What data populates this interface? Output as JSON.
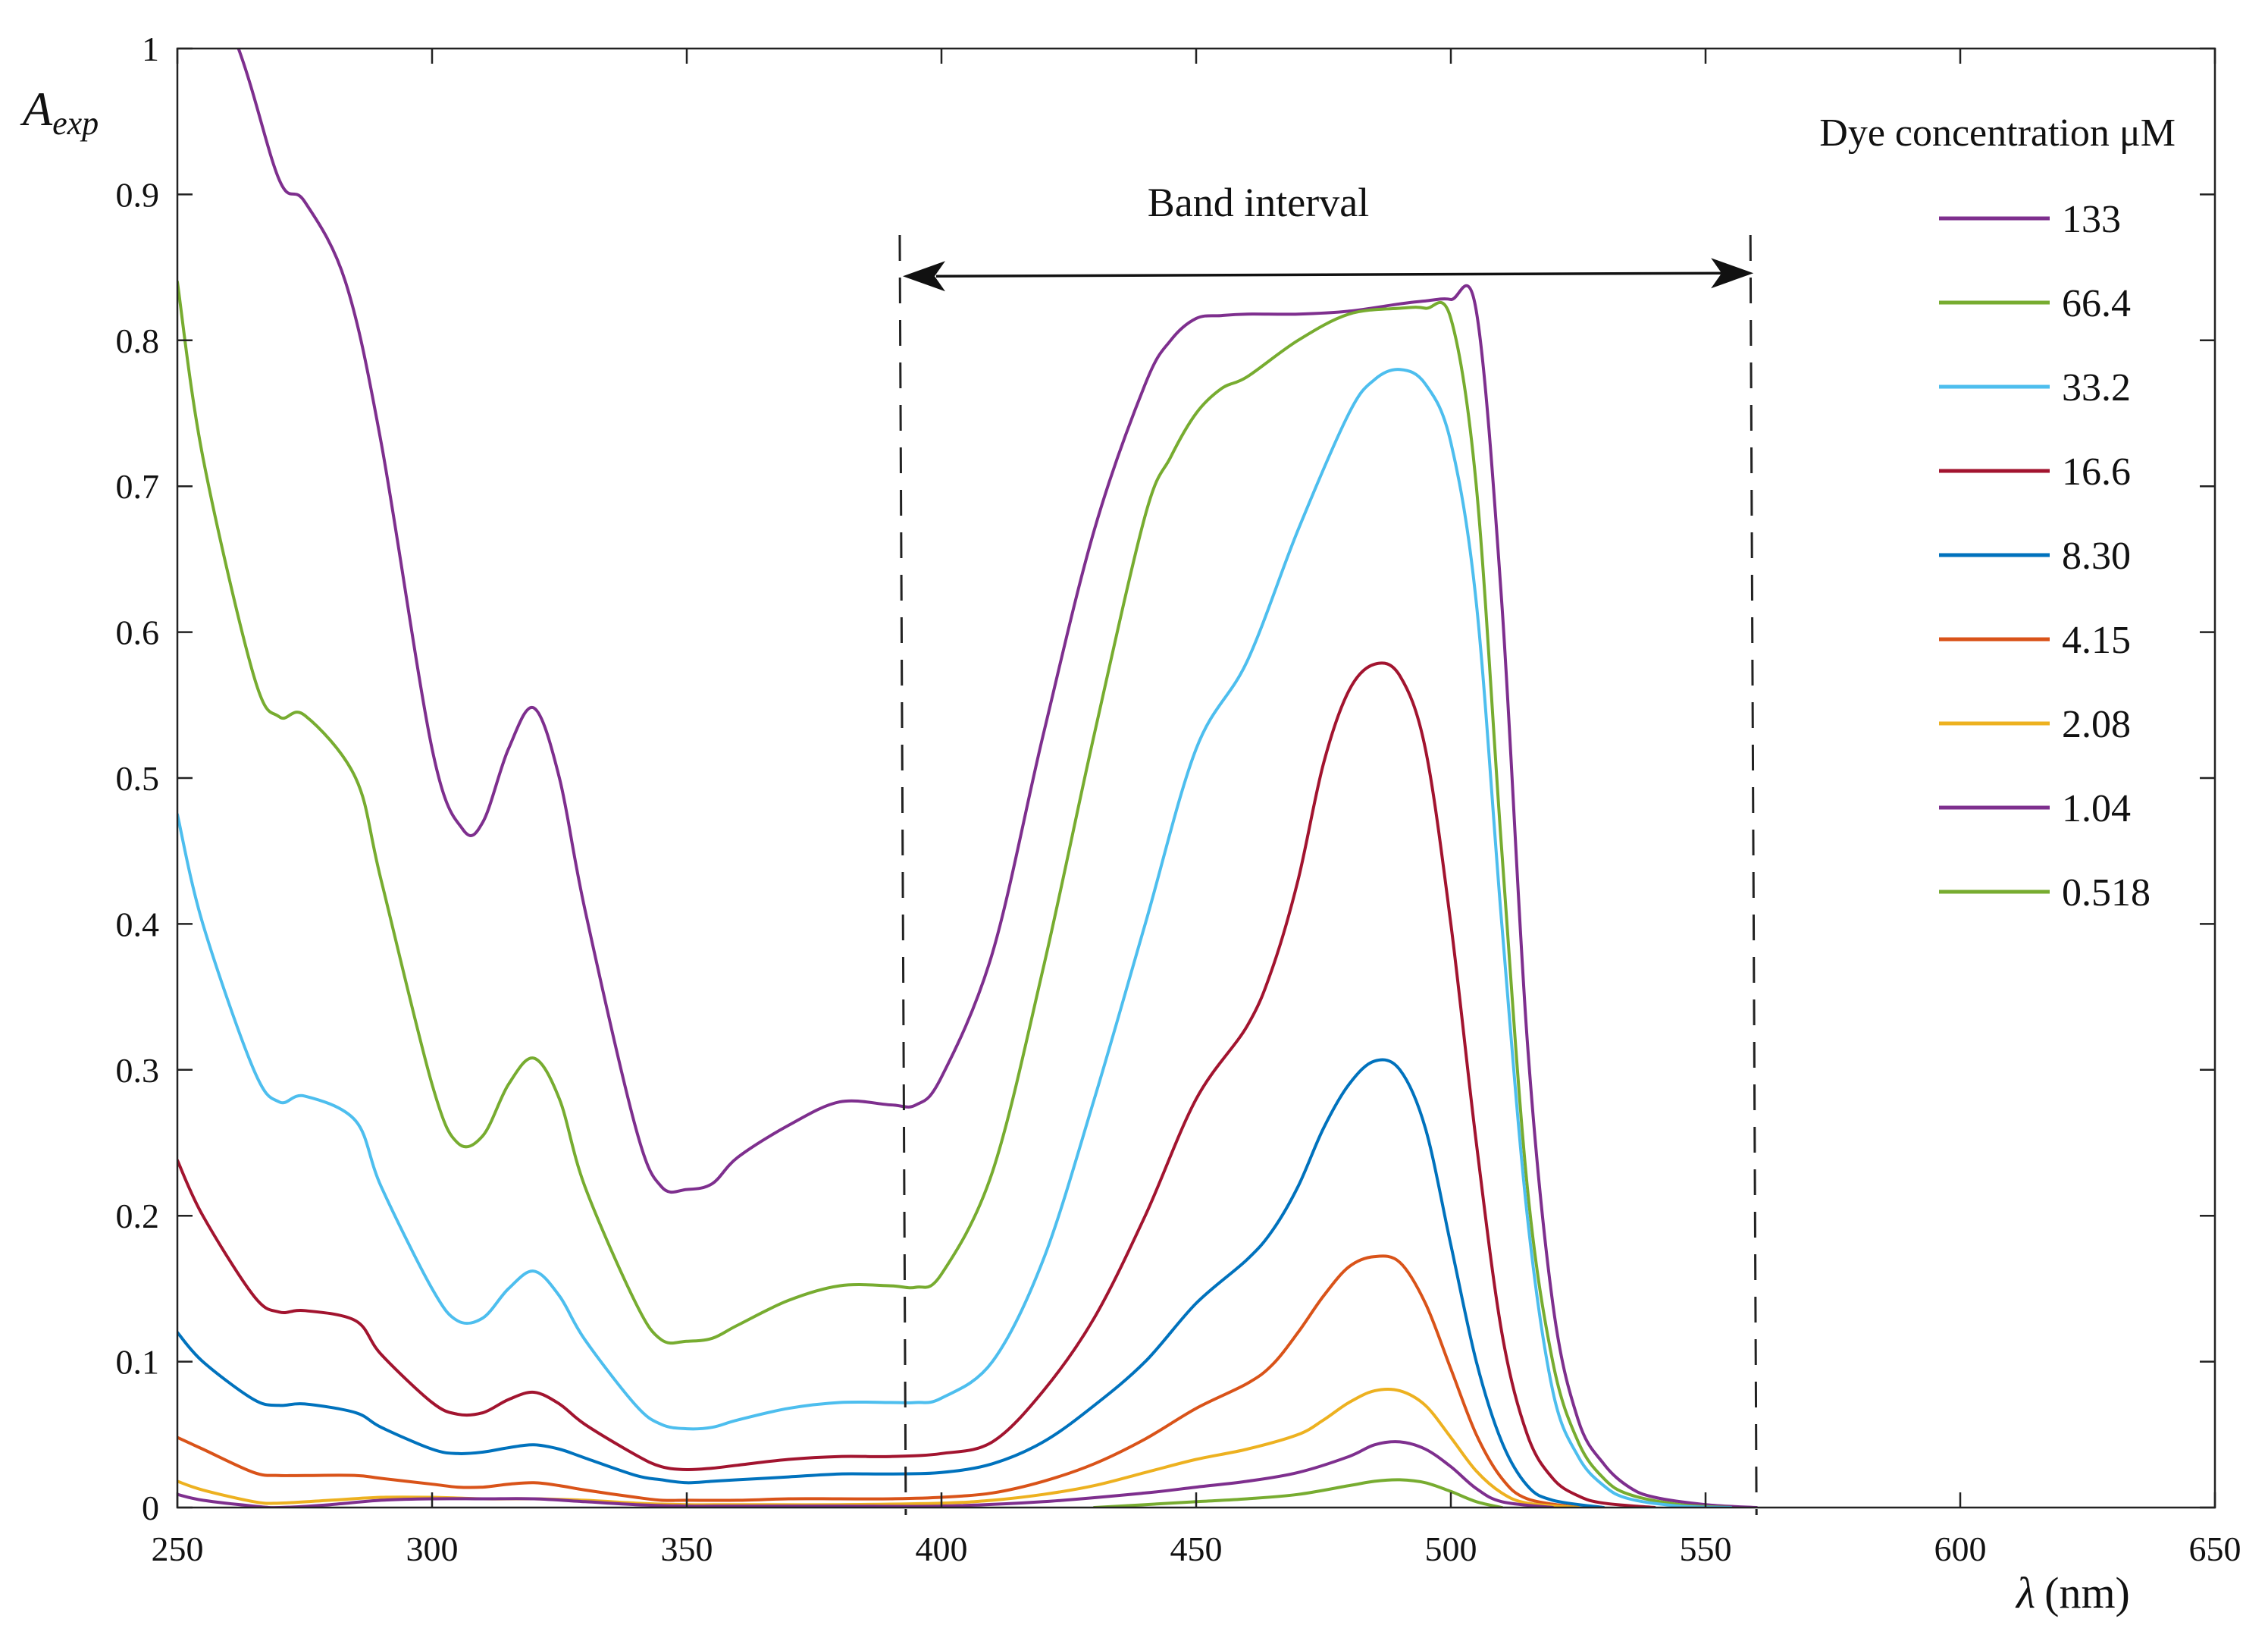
{
  "chart_data": {
    "type": "line",
    "xlabel_symbol": "λ",
    "xlabel_unit": "(nm)",
    "ylabel_main": "A",
    "ylabel_sub": "exp",
    "xlim": [
      250,
      650
    ],
    "ylim": [
      0,
      1
    ],
    "x_ticks": [
      250,
      300,
      350,
      400,
      450,
      500,
      550,
      600,
      650
    ],
    "y_ticks": [
      0,
      0.1,
      0.2,
      0.3,
      0.4,
      0.5,
      0.6,
      0.7,
      0.8,
      0.9,
      1
    ],
    "y_tick_labels": [
      "0",
      "0.1",
      "0.2",
      "0.3",
      "0.4",
      "0.5",
      "0.6",
      "0.7",
      "0.8",
      "0.9",
      "1"
    ],
    "grid": false,
    "legend": {
      "title": "Dye concentration μM",
      "position": "top-right"
    },
    "annotation": {
      "text": "Band interval",
      "x_start": 393,
      "x_end": 560,
      "arrow_y": 0.845
    },
    "series": [
      {
        "name": "133",
        "color": "#7E2F8E",
        "x": [
          250,
          262,
          270,
          275,
          283,
          290,
          300,
          306,
          310,
          315,
          320,
          325,
          330,
          340,
          345,
          350,
          355,
          360,
          370,
          380,
          390,
          395,
          400,
          410,
          420,
          430,
          440,
          445,
          450,
          455,
          460,
          470,
          480,
          490,
          495,
          500,
          505,
          510,
          515,
          520,
          525,
          530,
          535,
          540,
          550,
          560
        ],
        "y": [
          1.1,
          1.0,
          0.91,
          0.895,
          0.84,
          0.73,
          0.52,
          0.465,
          0.47,
          0.52,
          0.548,
          0.5,
          0.41,
          0.26,
          0.22,
          0.218,
          0.222,
          0.24,
          0.262,
          0.278,
          0.276,
          0.276,
          0.295,
          0.38,
          0.53,
          0.67,
          0.77,
          0.8,
          0.815,
          0.817,
          0.818,
          0.818,
          0.82,
          0.825,
          0.827,
          0.828,
          0.82,
          0.62,
          0.32,
          0.14,
          0.06,
          0.03,
          0.014,
          0.007,
          0.002,
          0.0
        ]
      },
      {
        "name": "66.4",
        "color": "#77AC30",
        "x": [
          250,
          255,
          265,
          270,
          275,
          285,
          290,
          300,
          305,
          310,
          315,
          320,
          325,
          330,
          340,
          345,
          350,
          355,
          360,
          370,
          380,
          390,
          395,
          400,
          410,
          420,
          430,
          440,
          445,
          450,
          455,
          460,
          470,
          480,
          490,
          495,
          500,
          505,
          510,
          515,
          520,
          525,
          530,
          535,
          545,
          555
        ],
        "y": [
          0.84,
          0.72,
          0.57,
          0.542,
          0.543,
          0.5,
          0.43,
          0.29,
          0.25,
          0.255,
          0.29,
          0.308,
          0.28,
          0.22,
          0.14,
          0.115,
          0.114,
          0.116,
          0.125,
          0.142,
          0.152,
          0.152,
          0.151,
          0.16,
          0.23,
          0.37,
          0.53,
          0.68,
          0.72,
          0.75,
          0.767,
          0.775,
          0.8,
          0.818,
          0.822,
          0.822,
          0.815,
          0.7,
          0.45,
          0.22,
          0.1,
          0.045,
          0.02,
          0.009,
          0.002,
          0.0
        ]
      },
      {
        "name": "33.2",
        "color": "#4DBEEE",
        "x": [
          250,
          255,
          265,
          270,
          275,
          285,
          290,
          300,
          305,
          310,
          315,
          320,
          325,
          330,
          340,
          345,
          350,
          355,
          360,
          370,
          380,
          390,
          395,
          400,
          410,
          420,
          430,
          440,
          450,
          460,
          470,
          480,
          485,
          490,
          495,
          500,
          505,
          510,
          515,
          520,
          525,
          530,
          535,
          545,
          555
        ],
        "y": [
          0.475,
          0.4,
          0.3,
          0.278,
          0.282,
          0.265,
          0.22,
          0.15,
          0.128,
          0.13,
          0.15,
          0.162,
          0.145,
          0.115,
          0.07,
          0.057,
          0.054,
          0.055,
          0.06,
          0.068,
          0.072,
          0.072,
          0.072,
          0.075,
          0.1,
          0.17,
          0.28,
          0.4,
          0.52,
          0.58,
          0.67,
          0.75,
          0.773,
          0.78,
          0.77,
          0.73,
          0.62,
          0.4,
          0.2,
          0.08,
          0.035,
          0.015,
          0.006,
          0.001,
          0.0
        ]
      },
      {
        "name": "16.6",
        "color": "#A2142F",
        "x": [
          250,
          255,
          265,
          270,
          275,
          285,
          290,
          300,
          305,
          310,
          315,
          320,
          325,
          330,
          340,
          345,
          350,
          355,
          360,
          370,
          380,
          390,
          400,
          410,
          420,
          430,
          440,
          450,
          460,
          465,
          470,
          475,
          480,
          485,
          490,
          495,
          500,
          505,
          510,
          515,
          520,
          525,
          530,
          540
        ],
        "y": [
          0.238,
          0.2,
          0.145,
          0.134,
          0.135,
          0.128,
          0.105,
          0.072,
          0.064,
          0.065,
          0.074,
          0.079,
          0.071,
          0.057,
          0.036,
          0.028,
          0.026,
          0.027,
          0.029,
          0.033,
          0.035,
          0.035,
          0.037,
          0.045,
          0.08,
          0.13,
          0.2,
          0.28,
          0.33,
          0.37,
          0.43,
          0.51,
          0.56,
          0.578,
          0.57,
          0.52,
          0.4,
          0.25,
          0.12,
          0.05,
          0.02,
          0.008,
          0.003,
          0.0
        ]
      },
      {
        "name": "8.30",
        "color": "#0072BD",
        "x": [
          250,
          255,
          265,
          270,
          275,
          285,
          290,
          300,
          305,
          310,
          315,
          320,
          325,
          330,
          340,
          345,
          350,
          355,
          360,
          370,
          380,
          390,
          400,
          410,
          420,
          430,
          440,
          450,
          460,
          465,
          470,
          475,
          480,
          485,
          490,
          495,
          500,
          505,
          510,
          515,
          520,
          530
        ],
        "y": [
          0.12,
          0.1,
          0.074,
          0.07,
          0.071,
          0.065,
          0.055,
          0.04,
          0.037,
          0.038,
          0.041,
          0.043,
          0.04,
          0.034,
          0.022,
          0.019,
          0.017,
          0.018,
          0.019,
          0.021,
          0.023,
          0.023,
          0.024,
          0.03,
          0.045,
          0.07,
          0.1,
          0.14,
          0.17,
          0.19,
          0.22,
          0.26,
          0.29,
          0.306,
          0.3,
          0.26,
          0.18,
          0.1,
          0.045,
          0.015,
          0.005,
          0.0
        ]
      },
      {
        "name": "4.15",
        "color": "#D95319",
        "x": [
          250,
          255,
          265,
          270,
          275,
          285,
          290,
          300,
          305,
          310,
          315,
          320,
          325,
          330,
          340,
          345,
          350,
          360,
          370,
          380,
          390,
          400,
          410,
          420,
          430,
          440,
          450,
          460,
          465,
          470,
          475,
          480,
          485,
          490,
          495,
          500,
          505,
          510,
          515,
          525
        ],
        "y": [
          0.048,
          0.04,
          0.024,
          0.022,
          0.022,
          0.022,
          0.02,
          0.016,
          0.014,
          0.014,
          0.016,
          0.017,
          0.015,
          0.012,
          0.007,
          0.005,
          0.005,
          0.005,
          0.006,
          0.006,
          0.006,
          0.007,
          0.01,
          0.018,
          0.03,
          0.047,
          0.068,
          0.085,
          0.098,
          0.12,
          0.145,
          0.165,
          0.172,
          0.168,
          0.14,
          0.095,
          0.05,
          0.02,
          0.006,
          0.0
        ]
      },
      {
        "name": "2.08",
        "color": "#EDB120",
        "x": [
          250,
          255,
          265,
          270,
          280,
          290,
          300,
          310,
          320,
          330,
          340,
          350,
          360,
          380,
          400,
          410,
          420,
          430,
          440,
          450,
          460,
          470,
          475,
          480,
          485,
          490,
          495,
          500,
          505,
          510,
          515,
          525
        ],
        "y": [
          0.018,
          0.012,
          0.004,
          0.003,
          0.005,
          0.007,
          0.007,
          0.006,
          0.006,
          0.005,
          0.003,
          0.002,
          0.002,
          0.002,
          0.003,
          0.005,
          0.009,
          0.015,
          0.024,
          0.033,
          0.04,
          0.05,
          0.06,
          0.072,
          0.08,
          0.08,
          0.07,
          0.048,
          0.025,
          0.01,
          0.003,
          0.0
        ]
      },
      {
        "name": "1.04",
        "color": "#7E2F8E",
        "x": [
          250,
          255,
          265,
          270,
          280,
          290,
          300,
          310,
          320,
          330,
          340,
          350,
          360,
          380,
          400,
          420,
          440,
          450,
          460,
          470,
          480,
          485,
          490,
          495,
          500,
          505,
          510,
          520
        ],
        "y": [
          0.009,
          0.005,
          0.001,
          0.0,
          0.002,
          0.005,
          0.006,
          0.006,
          0.006,
          0.004,
          0.002,
          0.001,
          0.001,
          0.001,
          0.001,
          0.004,
          0.01,
          0.014,
          0.018,
          0.024,
          0.035,
          0.043,
          0.045,
          0.04,
          0.028,
          0.013,
          0.004,
          0.0
        ]
      },
      {
        "name": "0.518",
        "color": "#77AC30",
        "x": [
          430,
          440,
          450,
          460,
          470,
          480,
          485,
          490,
          495,
          500,
          505,
          510
        ],
        "y": [
          0.0,
          0.002,
          0.004,
          0.006,
          0.009,
          0.015,
          0.018,
          0.019,
          0.017,
          0.011,
          0.004,
          0.0
        ]
      }
    ]
  }
}
